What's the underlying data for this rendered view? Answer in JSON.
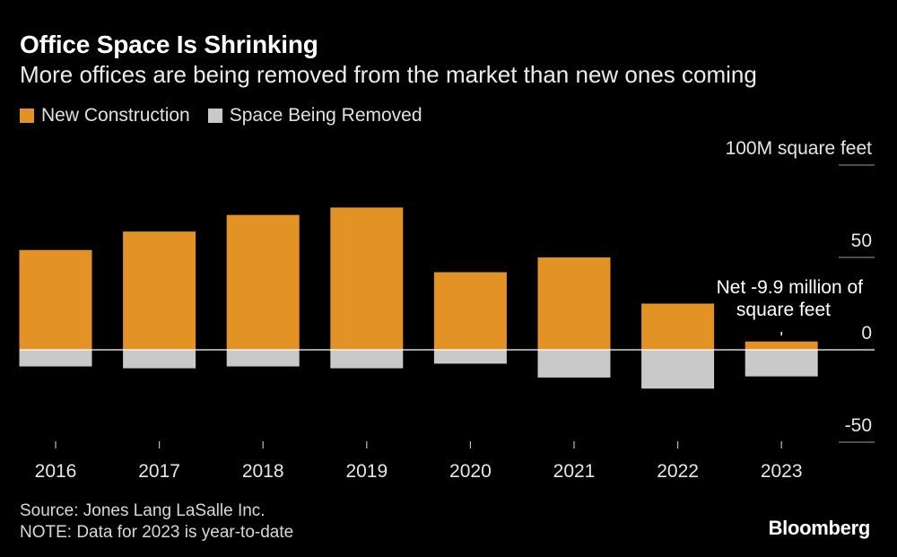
{
  "title": "Office Space Is Shrinking",
  "subtitle": "More offices are being removed from the market than new ones coming",
  "legend": [
    {
      "label": "New Construction",
      "color": "#e39326"
    },
    {
      "label": "Space Being Removed",
      "color": "#c9c9c9"
    }
  ],
  "chart_data": {
    "type": "bar",
    "categories": [
      "2016",
      "2017",
      "2018",
      "2019",
      "2020",
      "2021",
      "2022",
      "2023"
    ],
    "series": [
      {
        "name": "New Construction",
        "values": [
          54,
          64,
          73,
          77,
          42,
          50,
          25,
          4.5
        ],
        "color": "#e39326"
      },
      {
        "name": "Space Being Removed",
        "values": [
          -9,
          -10,
          -9,
          -10,
          -7.5,
          -15,
          -21,
          -14.4
        ],
        "color": "#c9c9c9"
      }
    ],
    "ylim": [
      -50,
      100
    ],
    "y_ticks": [
      100,
      50,
      0,
      -50
    ],
    "y_tick_labels": [
      "100M square feet",
      "50",
      "0",
      "-50"
    ],
    "annotation": {
      "category": "2023",
      "lines": [
        "Net -9.9 million of",
        "square feet"
      ]
    },
    "stacked": true,
    "grid": true,
    "legend_position": "top-left"
  },
  "footer": {
    "source": "Source: Jones Lang LaSalle Inc.",
    "note": "NOTE: Data for 2023 is year-to-date",
    "brand": "Bloomberg"
  }
}
